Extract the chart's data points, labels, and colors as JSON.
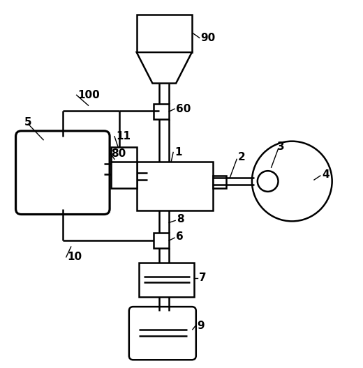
{
  "bg_color": "#ffffff",
  "line_color": "#000000",
  "lw": 1.8,
  "figsize": [
    5.2,
    5.28
  ],
  "dpi": 100
}
